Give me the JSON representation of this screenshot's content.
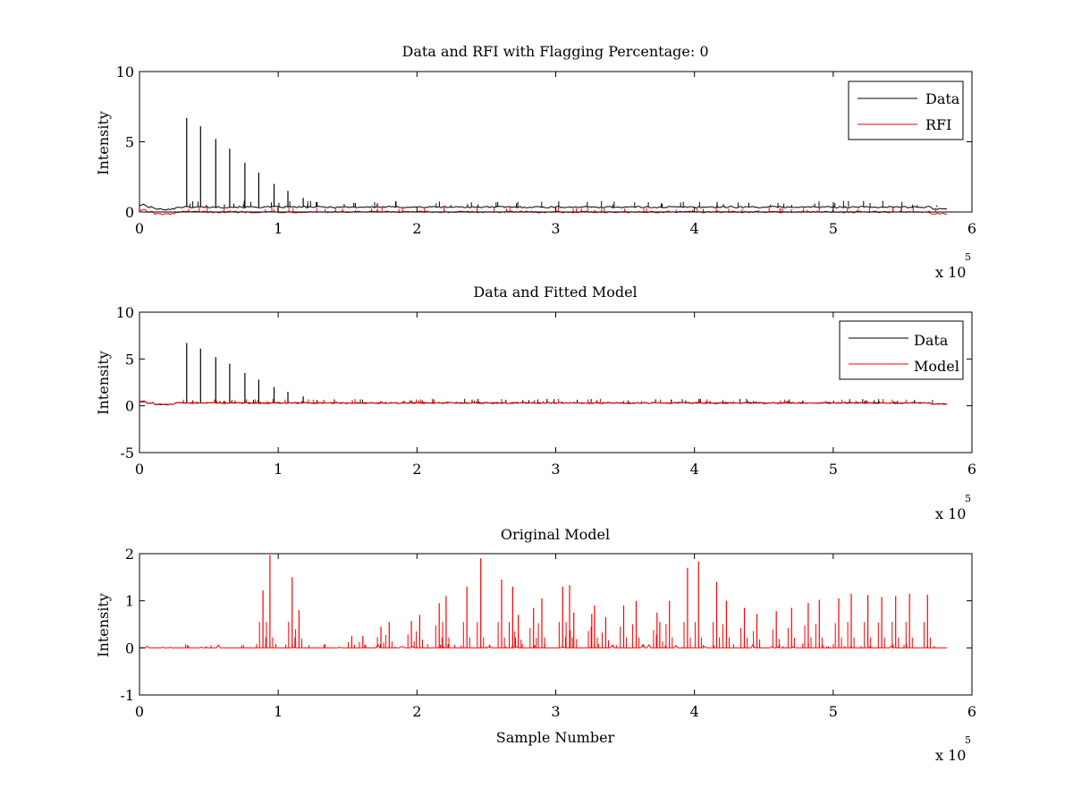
{
  "figure": {
    "exponent_base": "x 10",
    "exponent_power": "5"
  },
  "colors": {
    "data": "#000000",
    "rfi": "#ff0000",
    "model": "#ff0000",
    "axes": "#000000"
  },
  "chart_data": [
    {
      "type": "line",
      "title": "Data and RFI with Flagging Percentage: 0",
      "xlabel": "",
      "ylabel": "Intensity",
      "xlim": [
        0,
        6
      ],
      "ylim": [
        0,
        10
      ],
      "xticks": [
        "0",
        "1",
        "2",
        "3",
        "4",
        "5",
        "6"
      ],
      "yticks": [
        "0",
        "5",
        "10"
      ],
      "x_multiplier": "x 10^5",
      "legend_position": "top-right",
      "series": [
        {
          "name": "Data",
          "color": "#000000",
          "baseline": 0.35,
          "spikes": [
            [
              0.34,
              6.7
            ],
            [
              0.44,
              6.1
            ],
            [
              0.55,
              5.2
            ],
            [
              0.65,
              4.5
            ],
            [
              0.76,
              3.5
            ],
            [
              0.86,
              2.8
            ],
            [
              0.97,
              2.0
            ],
            [
              1.07,
              1.5
            ],
            [
              1.18,
              1.0
            ],
            [
              1.28,
              0.7
            ]
          ]
        },
        {
          "name": "RFI",
          "color": "#ff0000",
          "baseline": 0.0,
          "spikes": []
        }
      ]
    },
    {
      "type": "line",
      "title": "Data and Fitted Model",
      "xlabel": "",
      "ylabel": "Intensity",
      "xlim": [
        0,
        6
      ],
      "ylim": [
        -5,
        10
      ],
      "xticks": [
        "0",
        "1",
        "2",
        "3",
        "4",
        "5",
        "6"
      ],
      "yticks": [
        "-5",
        "0",
        "5",
        "10"
      ],
      "x_multiplier": "x 10^5",
      "legend_position": "top-right",
      "series": [
        {
          "name": "Data",
          "color": "#000000",
          "baseline": 0.3,
          "spikes": [
            [
              0.34,
              6.7
            ],
            [
              0.44,
              6.1
            ],
            [
              0.55,
              5.2
            ],
            [
              0.65,
              4.5
            ],
            [
              0.76,
              3.5
            ],
            [
              0.86,
              2.8
            ],
            [
              0.97,
              2.0
            ],
            [
              1.07,
              1.5
            ],
            [
              1.18,
              1.0
            ],
            [
              1.28,
              0.6
            ]
          ]
        },
        {
          "name": "Model",
          "color": "#ff0000",
          "baseline": 0.3,
          "spikes": []
        }
      ]
    },
    {
      "type": "line",
      "title": "Original Model",
      "xlabel": "Sample Number",
      "ylabel": "Intensity",
      "xlim": [
        0,
        6
      ],
      "ylim": [
        -1,
        2
      ],
      "xticks": [
        "0",
        "1",
        "2",
        "3",
        "4",
        "5",
        "6"
      ],
      "yticks": [
        "-1",
        "0",
        "1",
        "2"
      ],
      "x_multiplier": "x 10^5",
      "legend_position": "none",
      "series": [
        {
          "name": "",
          "color": "#ff0000",
          "baseline": 0.0,
          "spikes": [
            [
              0.89,
              1.22
            ],
            [
              0.94,
              1.97
            ],
            [
              1.1,
              1.5
            ],
            [
              1.15,
              0.8
            ],
            [
              1.53,
              0.25
            ],
            [
              1.61,
              0.25
            ],
            [
              1.74,
              0.45
            ],
            [
              1.8,
              0.55
            ],
            [
              1.96,
              0.57
            ],
            [
              2.02,
              0.7
            ],
            [
              2.16,
              0.95
            ],
            [
              2.21,
              1.1
            ],
            [
              2.36,
              1.3
            ],
            [
              2.46,
              1.9
            ],
            [
              2.61,
              1.45
            ],
            [
              2.69,
              1.3
            ],
            [
              2.73,
              0.7
            ],
            [
              2.84,
              0.85
            ],
            [
              2.9,
              1.05
            ],
            [
              3.05,
              1.3
            ],
            [
              3.1,
              1.33
            ],
            [
              3.13,
              0.75
            ],
            [
              3.26,
              0.72
            ],
            [
              3.28,
              0.9
            ],
            [
              3.36,
              0.65
            ],
            [
              3.49,
              0.9
            ],
            [
              3.58,
              1.0
            ],
            [
              3.73,
              0.75
            ],
            [
              3.75,
              0.55
            ],
            [
              3.82,
              1.0
            ],
            [
              3.95,
              1.7
            ],
            [
              4.03,
              1.83
            ],
            [
              4.16,
              1.4
            ],
            [
              4.23,
              1.0
            ],
            [
              4.36,
              0.85
            ],
            [
              4.45,
              0.72
            ],
            [
              4.59,
              0.78
            ],
            [
              4.7,
              0.85
            ],
            [
              4.82,
              0.95
            ],
            [
              4.9,
              1.02
            ],
            [
              5.04,
              1.05
            ],
            [
              5.13,
              1.15
            ],
            [
              5.25,
              1.12
            ],
            [
              5.35,
              1.08
            ],
            [
              5.45,
              1.1
            ],
            [
              5.55,
              1.15
            ],
            [
              5.68,
              1.13
            ]
          ]
        }
      ]
    }
  ]
}
